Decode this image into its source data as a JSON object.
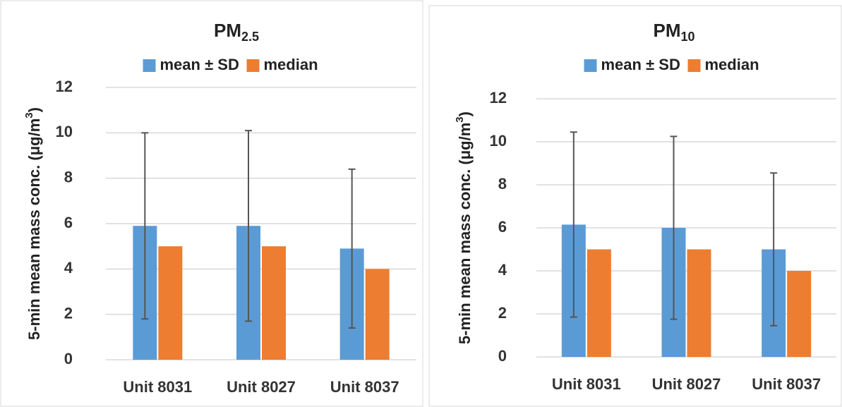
{
  "chart_data": [
    {
      "type": "bar",
      "title": "PM",
      "title_subscript": "2.5",
      "y_label": "5-min mean mass conc. (μg/m",
      "y_label_superscript": "3",
      "y_label_end": ")",
      "categories": [
        "Unit 8031",
        "Unit 8027",
        "Unit 8037"
      ],
      "series": [
        {
          "name": "mean ± SD",
          "color": "#5b9bd5",
          "values": [
            5.9,
            5.9,
            4.9
          ],
          "errors": [
            4.1,
            4.2,
            3.5
          ]
        },
        {
          "name": "median",
          "color": "#ed7d31",
          "values": [
            5,
            5,
            4
          ]
        }
      ],
      "ylim": [
        0,
        12
      ],
      "yticks": [
        0,
        2,
        4,
        6,
        8,
        10,
        12
      ],
      "grid": true,
      "legend": "top"
    },
    {
      "type": "bar",
      "title": "PM",
      "title_subscript": "10",
      "y_label": "5-min mean mass conc. (μg/m",
      "y_label_superscript": "3",
      "y_label_end": ")",
      "categories": [
        "Unit 8031",
        "Unit 8027",
        "Unit 8037"
      ],
      "series": [
        {
          "name": "mean ± SD",
          "color": "#5b9bd5",
          "values": [
            6.15,
            6.0,
            5.0
          ],
          "errors": [
            4.3,
            4.25,
            3.55
          ]
        },
        {
          "name": "median",
          "color": "#ed7d31",
          "values": [
            5,
            5,
            4
          ]
        }
      ],
      "ylim": [
        0,
        12
      ],
      "yticks": [
        0,
        2,
        4,
        6,
        8,
        10,
        12
      ],
      "grid": true,
      "legend": "top"
    }
  ]
}
